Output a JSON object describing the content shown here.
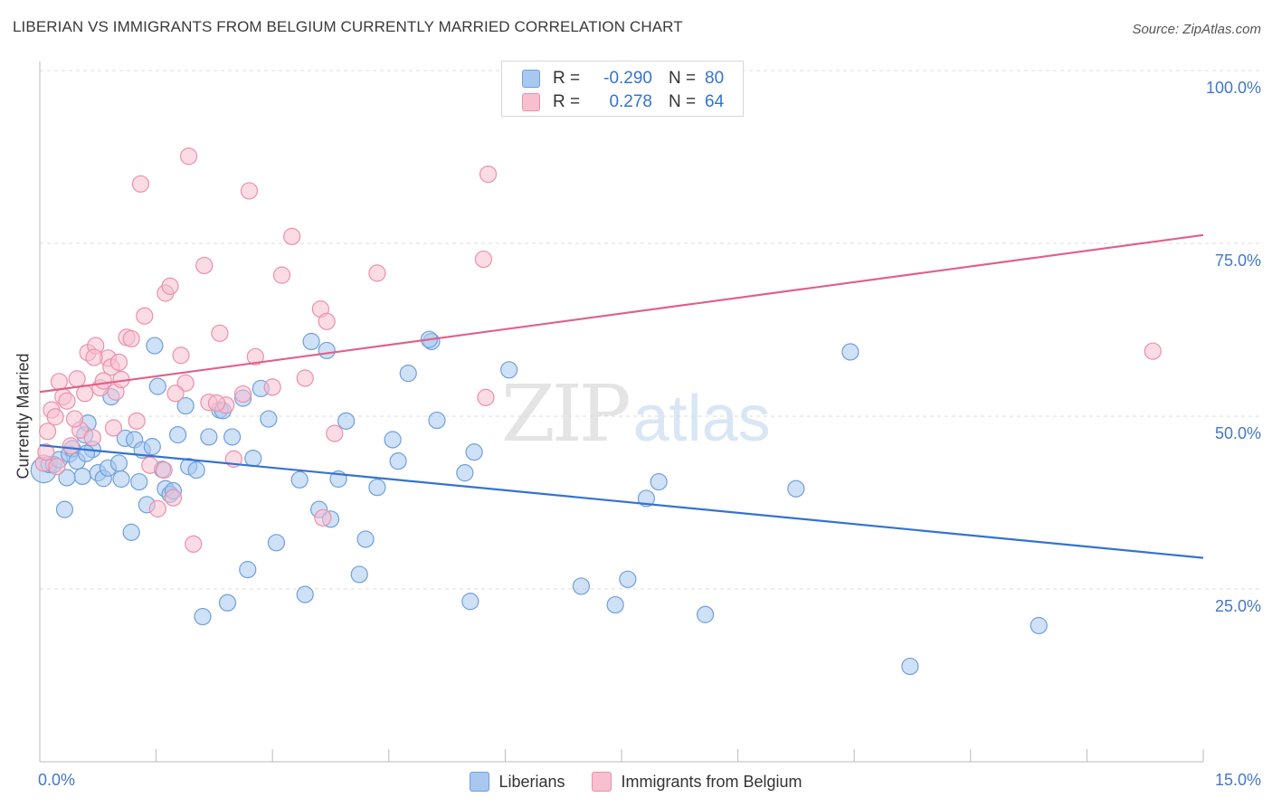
{
  "title": "LIBERIAN VS IMMIGRANTS FROM BELGIUM CURRENTLY MARRIED CORRELATION CHART",
  "source": "Source: ZipAtlas.com",
  "watermark": {
    "zip": "ZIP",
    "atlas": "atlas"
  },
  "colors": {
    "blue_fill": "#a8c8f0",
    "blue_stroke": "#6f9fdc",
    "blue_line": "#3373d1",
    "pink_fill": "#f8bfd0",
    "pink_stroke": "#ec8fab",
    "pink_line": "#e0608a",
    "tick_text": "#4477cc",
    "grid": "#dcdcdc"
  },
  "legend_top": {
    "rows": [
      {
        "label": "R =",
        "r": "-0.290",
        "n_label": "N =",
        "n": "80"
      },
      {
        "label": "R =",
        "r": "0.278",
        "n_label": "N =",
        "n": "64"
      }
    ]
  },
  "legend_bottom": {
    "blue_label": "Liberians",
    "pink_label": "Immigrants from Belgium"
  },
  "chart_data": {
    "type": "scatter",
    "title": "LIBERIAN VS IMMIGRANTS FROM BELGIUM CURRENTLY MARRIED CORRELATION CHART",
    "xlabel": "",
    "ylabel": "Currently Married",
    "xlim": [
      0,
      15
    ],
    "ylim": [
      0,
      105
    ],
    "x_tick_labels": {
      "min": "0.0%",
      "max": "15.0%"
    },
    "y_ticks": [
      {
        "value": 25,
        "label": "25.0%"
      },
      {
        "value": 50,
        "label": "50.0%"
      },
      {
        "value": 75,
        "label": "75.0%"
      },
      {
        "value": 100,
        "label": "100.0%"
      }
    ],
    "grid": true,
    "series": [
      {
        "name": "Liberians",
        "color": "#a8c8f0",
        "r": -0.29,
        "n": 80,
        "trend": {
          "x": [
            0,
            15
          ],
          "y": [
            45.8,
            29.5
          ]
        },
        "points": [
          [
            0.05,
            42.2
          ],
          [
            0.12,
            43.0
          ],
          [
            0.18,
            43.0
          ],
          [
            0.25,
            43.7
          ],
          [
            0.32,
            36.5
          ],
          [
            0.38,
            44.5
          ],
          [
            0.42,
            45.3
          ],
          [
            0.48,
            43.5
          ],
          [
            0.55,
            41.3
          ],
          [
            0.58,
            47.3
          ],
          [
            0.62,
            49.0
          ],
          [
            0.68,
            45.2
          ],
          [
            0.75,
            41.8
          ],
          [
            0.82,
            41.0
          ],
          [
            0.88,
            42.5
          ],
          [
            0.92,
            52.8
          ],
          [
            1.02,
            43.2
          ],
          [
            1.1,
            46.8
          ],
          [
            1.18,
            33.2
          ],
          [
            1.22,
            46.6
          ],
          [
            1.28,
            40.5
          ],
          [
            1.32,
            45.1
          ],
          [
            1.38,
            37.2
          ],
          [
            1.48,
            60.2
          ],
          [
            1.52,
            54.3
          ],
          [
            1.58,
            42.3
          ],
          [
            1.62,
            39.5
          ],
          [
            1.68,
            38.7
          ],
          [
            1.72,
            39.2
          ],
          [
            1.78,
            47.3
          ],
          [
            1.88,
            51.5
          ],
          [
            1.92,
            42.7
          ],
          [
            2.02,
            42.2
          ],
          [
            2.1,
            21.0
          ],
          [
            2.18,
            47.0
          ],
          [
            2.32,
            50.9
          ],
          [
            2.42,
            23.0
          ],
          [
            2.48,
            47.0
          ],
          [
            2.62,
            52.6
          ],
          [
            2.68,
            27.8
          ],
          [
            2.75,
            43.9
          ],
          [
            2.85,
            54.0
          ],
          [
            2.95,
            49.6
          ],
          [
            3.05,
            31.7
          ],
          [
            3.35,
            40.8
          ],
          [
            3.5,
            60.8
          ],
          [
            3.6,
            36.5
          ],
          [
            3.7,
            59.5
          ],
          [
            3.85,
            40.9
          ],
          [
            3.95,
            49.3
          ],
          [
            4.12,
            27.1
          ],
          [
            4.2,
            32.2
          ],
          [
            4.35,
            39.7
          ],
          [
            4.55,
            46.6
          ],
          [
            4.62,
            43.5
          ],
          [
            4.75,
            56.2
          ],
          [
            5.05,
            60.8
          ],
          [
            5.12,
            49.4
          ],
          [
            5.48,
            41.8
          ],
          [
            5.55,
            23.2
          ],
          [
            5.6,
            44.8
          ],
          [
            6.05,
            56.7
          ],
          [
            6.98,
            25.4
          ],
          [
            7.42,
            22.7
          ],
          [
            7.58,
            26.4
          ],
          [
            7.82,
            38.1
          ],
          [
            7.98,
            40.5
          ],
          [
            8.58,
            21.3
          ],
          [
            9.75,
            39.5
          ],
          [
            10.45,
            59.3
          ],
          [
            11.22,
            13.8
          ],
          [
            12.88,
            19.7
          ],
          [
            0.6,
            44.6
          ],
          [
            1.05,
            40.9
          ],
          [
            2.36,
            50.8
          ],
          [
            3.75,
            35.1
          ],
          [
            5.02,
            61.1
          ],
          [
            1.45,
            45.6
          ],
          [
            3.42,
            24.2
          ],
          [
            0.35,
            41.1
          ]
        ]
      },
      {
        "name": "Immigrants from Belgium",
        "color": "#f8bfd0",
        "r": 0.278,
        "n": 64,
        "trend": {
          "x": [
            0,
            15
          ],
          "y": [
            53.5,
            76.2
          ]
        },
        "points": [
          [
            0.05,
            43.2
          ],
          [
            0.1,
            47.8
          ],
          [
            0.15,
            50.9
          ],
          [
            0.2,
            49.9
          ],
          [
            0.25,
            55.0
          ],
          [
            0.3,
            52.8
          ],
          [
            0.35,
            52.2
          ],
          [
            0.4,
            45.7
          ],
          [
            0.48,
            55.4
          ],
          [
            0.52,
            48.0
          ],
          [
            0.58,
            53.3
          ],
          [
            0.62,
            59.2
          ],
          [
            0.68,
            46.9
          ],
          [
            0.72,
            60.2
          ],
          [
            0.78,
            54.1
          ],
          [
            0.82,
            55.1
          ],
          [
            0.88,
            58.4
          ],
          [
            0.92,
            57.1
          ],
          [
            0.98,
            53.5
          ],
          [
            1.05,
            55.3
          ],
          [
            1.12,
            61.4
          ],
          [
            1.18,
            61.2
          ],
          [
            1.25,
            49.3
          ],
          [
            1.3,
            83.6
          ],
          [
            1.35,
            64.5
          ],
          [
            1.42,
            42.9
          ],
          [
            1.52,
            36.6
          ],
          [
            1.6,
            42.2
          ],
          [
            1.62,
            67.8
          ],
          [
            1.68,
            68.8
          ],
          [
            1.72,
            38.2
          ],
          [
            1.82,
            58.8
          ],
          [
            1.88,
            54.8
          ],
          [
            1.92,
            87.6
          ],
          [
            1.98,
            31.5
          ],
          [
            2.12,
            71.8
          ],
          [
            2.18,
            52.0
          ],
          [
            2.32,
            62.0
          ],
          [
            2.4,
            51.6
          ],
          [
            2.5,
            43.8
          ],
          [
            2.62,
            53.2
          ],
          [
            2.7,
            82.6
          ],
          [
            2.78,
            58.6
          ],
          [
            3.0,
            54.2
          ],
          [
            3.12,
            70.4
          ],
          [
            3.25,
            76.0
          ],
          [
            3.42,
            55.5
          ],
          [
            3.62,
            65.5
          ],
          [
            3.7,
            63.7
          ],
          [
            3.8,
            47.5
          ],
          [
            4.35,
            70.7
          ],
          [
            5.75,
            52.7
          ],
          [
            5.72,
            72.7
          ],
          [
            5.78,
            85.0
          ],
          [
            14.35,
            59.4
          ],
          [
            0.08,
            44.8
          ],
          [
            0.22,
            42.7
          ],
          [
            0.45,
            49.6
          ],
          [
            0.7,
            58.5
          ],
          [
            1.02,
            57.8
          ],
          [
            2.28,
            51.9
          ],
          [
            3.65,
            35.3
          ],
          [
            1.75,
            53.3
          ],
          [
            0.95,
            48.3
          ]
        ]
      }
    ]
  }
}
